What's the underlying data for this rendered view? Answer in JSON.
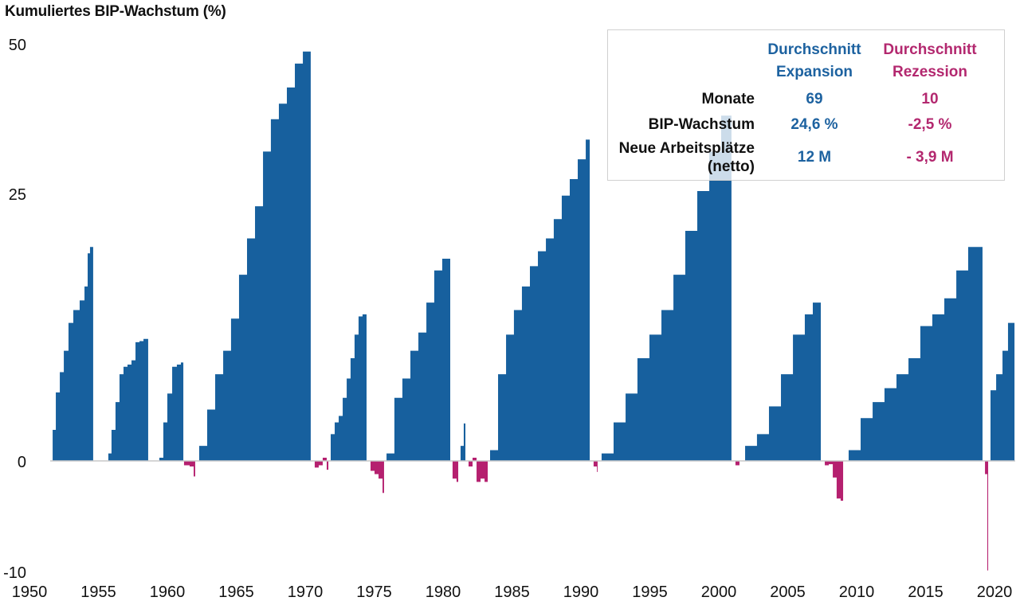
{
  "title": "Kumuliertes BIP-Wachstum (%)",
  "colors": {
    "expansion": "#17609e",
    "recession": "#b5206f",
    "baseline": "#c8c8c8",
    "table_expansion": "#1d62a0",
    "table_recession": "#b3286f"
  },
  "table": {
    "col_expansion": [
      "Durchschnitt",
      "Expansion"
    ],
    "col_recession": [
      "Durchschnitt",
      "Rezession"
    ],
    "rows": [
      {
        "label": [
          "Monate"
        ],
        "expansion": "69",
        "recession": "10"
      },
      {
        "label": [
          "BIP-Wachstum"
        ],
        "expansion": "24,6 %",
        "recession": "-2,5 %"
      },
      {
        "label": [
          "Neue Arbeitsplätze",
          "(netto)"
        ],
        "expansion": "12 M",
        "recession": "- 3,9 M"
      }
    ]
  },
  "chart_data": {
    "type": "area",
    "title": "Kumuliertes BIP-Wachstum (%)",
    "xlabel": "",
    "ylabel": "",
    "x_ticks": [
      1950,
      1955,
      1960,
      1965,
      1970,
      1975,
      1980,
      1985,
      1990,
      1995,
      2000,
      2005,
      2010,
      2015,
      2020
    ],
    "y_ticks": [
      50,
      25,
      0,
      -10
    ],
    "xlim": [
      1950,
      2021.5
    ],
    "ylim": [
      -10,
      52.5
    ],
    "grid": false,
    "expansions": [
      [
        [
          1951.5,
          0
        ],
        [
          1951.68,
          2.9
        ],
        [
          1951.91,
          6.4
        ],
        [
          1952.2,
          8.3
        ],
        [
          1952.49,
          10.3
        ],
        [
          1952.83,
          12.9
        ],
        [
          1953.18,
          14.1
        ],
        [
          1953.64,
          15.0
        ],
        [
          1953.99,
          16.3
        ],
        [
          1954.22,
          19.4
        ],
        [
          1954.39,
          20.0
        ],
        [
          1954.62,
          20.5
        ]
      ],
      [
        [
          1955.55,
          0
        ],
        [
          1955.72,
          0.7
        ],
        [
          1955.95,
          2.9
        ],
        [
          1956.24,
          5.5
        ],
        [
          1956.53,
          8.1
        ],
        [
          1956.82,
          8.8
        ],
        [
          1957.11,
          9.0
        ],
        [
          1957.4,
          9.4
        ],
        [
          1957.69,
          11.1
        ],
        [
          1957.98,
          11.2
        ],
        [
          1958.27,
          11.4
        ],
        [
          1958.61,
          12.1
        ]
      ],
      [
        [
          1959.31,
          0
        ],
        [
          1959.42,
          0.3
        ],
        [
          1959.71,
          3.6
        ],
        [
          1960.0,
          6.3
        ],
        [
          1960.35,
          8.8
        ],
        [
          1960.69,
          9.0
        ],
        [
          1960.98,
          9.2
        ],
        [
          1961.16,
          11.2
        ]
      ],
      [
        [
          1962.02,
          0
        ],
        [
          1962.31,
          1.4
        ],
        [
          1962.89,
          4.8
        ],
        [
          1963.47,
          8.1
        ],
        [
          1964.05,
          10.3
        ],
        [
          1964.62,
          13.3
        ],
        [
          1965.2,
          17.4
        ],
        [
          1965.78,
          20.8
        ],
        [
          1966.36,
          23.8
        ],
        [
          1966.94,
          32.0
        ],
        [
          1967.51,
          37.4
        ],
        [
          1968.09,
          40.0
        ],
        [
          1968.67,
          42.7
        ],
        [
          1969.25,
          46.7
        ],
        [
          1969.83,
          48.7
        ],
        [
          1970.4,
          52.4
        ]
      ],
      [
        [
          1971.68,
          0
        ],
        [
          1971.85,
          2.5
        ],
        [
          1972.14,
          3.6
        ],
        [
          1972.43,
          4.2
        ],
        [
          1972.72,
          5.9
        ],
        [
          1973.01,
          7.7
        ],
        [
          1973.29,
          9.6
        ],
        [
          1973.58,
          11.8
        ],
        [
          1973.87,
          13.5
        ],
        [
          1974.16,
          13.7
        ],
        [
          1974.45,
          13.8
        ]
      ],
      [
        [
          1975.72,
          0
        ],
        [
          1975.9,
          0.7
        ],
        [
          1976.47,
          5.9
        ],
        [
          1977.05,
          7.7
        ],
        [
          1977.63,
          10.3
        ],
        [
          1978.21,
          12.0
        ],
        [
          1978.79,
          14.8
        ],
        [
          1979.36,
          17.8
        ],
        [
          1979.94,
          18.9
        ],
        [
          1980.52,
          19.4
        ]
      ],
      [
        [
          1981.1,
          0
        ],
        [
          1981.27,
          1.4
        ],
        [
          1981.5,
          3.5
        ],
        [
          1981.62,
          3.5
        ]
      ],
      [
        [
          1983.24,
          0
        ],
        [
          1983.41,
          1.0
        ],
        [
          1983.99,
          8.1
        ],
        [
          1984.57,
          11.8
        ],
        [
          1985.14,
          14.1
        ],
        [
          1985.72,
          16.3
        ],
        [
          1986.3,
          18.2
        ],
        [
          1986.88,
          19.6
        ],
        [
          1987.46,
          20.8
        ],
        [
          1988.03,
          22.6
        ],
        [
          1988.61,
          24.8
        ],
        [
          1989.19,
          27.4
        ],
        [
          1989.77,
          30.7
        ],
        [
          1990.35,
          34.0
        ],
        [
          1990.64,
          34.4
        ]
      ],
      [
        [
          1991.21,
          0
        ],
        [
          1991.5,
          0.7
        ],
        [
          1992.37,
          3.6
        ],
        [
          1993.24,
          6.3
        ],
        [
          1994.1,
          9.6
        ],
        [
          1994.97,
          11.8
        ],
        [
          1995.84,
          14.1
        ],
        [
          1996.71,
          17.4
        ],
        [
          1997.57,
          21.5
        ],
        [
          1998.44,
          25.4
        ],
        [
          1999.31,
          32.0
        ],
        [
          2000.17,
          38.0
        ],
        [
          2000.92,
          40.0
        ]
      ],
      [
        [
          2001.5,
          0
        ],
        [
          2001.91,
          1.4
        ],
        [
          2002.77,
          2.5
        ],
        [
          2003.64,
          5.1
        ],
        [
          2004.51,
          8.1
        ],
        [
          2005.38,
          11.8
        ],
        [
          2006.24,
          13.7
        ],
        [
          2006.82,
          14.8
        ],
        [
          2007.4,
          16.3
        ]
      ],
      [
        [
          2009.02,
          0
        ],
        [
          2009.42,
          1.0
        ],
        [
          2010.29,
          4.0
        ],
        [
          2011.16,
          5.5
        ],
        [
          2012.02,
          6.8
        ],
        [
          2012.89,
          8.1
        ],
        [
          2013.76,
          9.6
        ],
        [
          2014.62,
          12.6
        ],
        [
          2015.49,
          13.7
        ],
        [
          2016.36,
          15.2
        ],
        [
          2017.23,
          17.8
        ],
        [
          2018.09,
          20.0
        ],
        [
          2019.13,
          22.2
        ]
      ],
      [
        [
          2019.54,
          0
        ],
        [
          2019.71,
          6.6
        ],
        [
          2020.12,
          8.1
        ],
        [
          2020.58,
          10.3
        ],
        [
          2020.98,
          12.9
        ],
        [
          2021.45,
          12.6
        ]
      ]
    ],
    "recessions": [
      [
        [
          1961.16,
          0
        ],
        [
          1961.21,
          -0.4
        ],
        [
          1961.62,
          -0.5
        ],
        [
          1961.91,
          -1.4
        ],
        [
          1962.02,
          0
        ]
      ],
      [
        [
          1970.4,
          0
        ],
        [
          1970.69,
          -0.6
        ],
        [
          1970.98,
          -0.4
        ],
        [
          1971.27,
          0.3
        ],
        [
          1971.56,
          -0.8
        ],
        [
          1971.68,
          0
        ]
      ],
      [
        [
          1974.45,
          0
        ],
        [
          1974.74,
          -0.9
        ],
        [
          1975.03,
          -1.2
        ],
        [
          1975.32,
          -1.6
        ],
        [
          1975.61,
          -2.9
        ],
        [
          1975.72,
          0
        ]
      ],
      [
        [
          1980.52,
          0
        ],
        [
          1980.69,
          -1.6
        ],
        [
          1980.98,
          -1.9
        ],
        [
          1981.1,
          0
        ]
      ],
      [
        [
          1981.62,
          0
        ],
        [
          1981.85,
          -0.5
        ],
        [
          1982.14,
          0.3
        ],
        [
          1982.43,
          -1.9
        ],
        [
          1982.72,
          -1.6
        ],
        [
          1983.01,
          -1.9
        ],
        [
          1983.24,
          0
        ]
      ],
      [
        [
          1990.64,
          0
        ],
        [
          1990.92,
          -0.5
        ],
        [
          1991.16,
          -1.0
        ],
        [
          1991.21,
          0
        ]
      ],
      [
        [
          2000.92,
          0
        ],
        [
          2001.21,
          -0.4
        ],
        [
          2001.5,
          0
        ]
      ],
      [
        [
          2007.4,
          0
        ],
        [
          2007.69,
          -0.4
        ],
        [
          2007.98,
          -0.3
        ],
        [
          2008.27,
          -1.5
        ],
        [
          2008.55,
          -3.4
        ],
        [
          2008.84,
          -3.6
        ],
        [
          2009.02,
          0
        ]
      ],
      [
        [
          2019.13,
          0
        ],
        [
          2019.31,
          -1.2
        ],
        [
          2019.48,
          -9.9
        ],
        [
          2019.54,
          0
        ]
      ]
    ]
  }
}
